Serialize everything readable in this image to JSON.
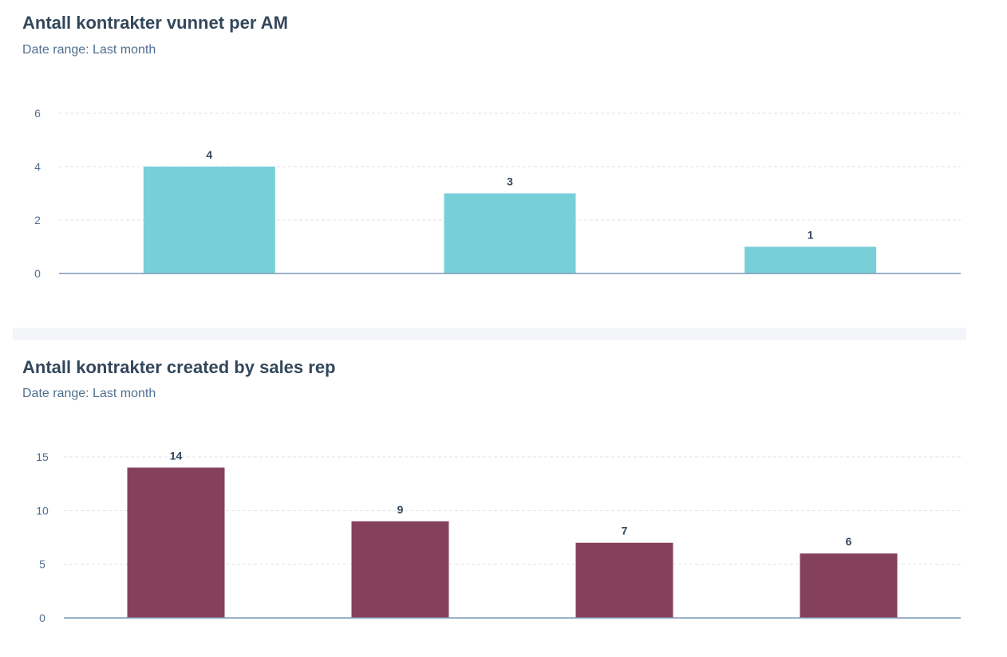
{
  "chart_data": [
    {
      "type": "bar",
      "title": "Antall kontrakter vunnet per AM",
      "subtitle": "Date range: Last month",
      "categories": [
        "",
        "",
        ""
      ],
      "values": [
        4,
        3,
        1
      ],
      "yticks": [
        0,
        2,
        4,
        6
      ],
      "ylim": [
        0,
        6
      ],
      "xlabel": "",
      "ylabel": "",
      "grid": true,
      "color": "#77cfd8"
    },
    {
      "type": "bar",
      "title": "Antall kontrakter created by sales rep",
      "subtitle": "Date range: Last month",
      "categories": [
        "",
        "",
        "",
        ""
      ],
      "values": [
        14,
        9,
        7,
        6
      ],
      "yticks": [
        0,
        5,
        10,
        15
      ],
      "ylim": [
        0,
        15
      ],
      "xlabel": "",
      "ylabel": "",
      "grid": true,
      "color": "#85415b"
    }
  ]
}
